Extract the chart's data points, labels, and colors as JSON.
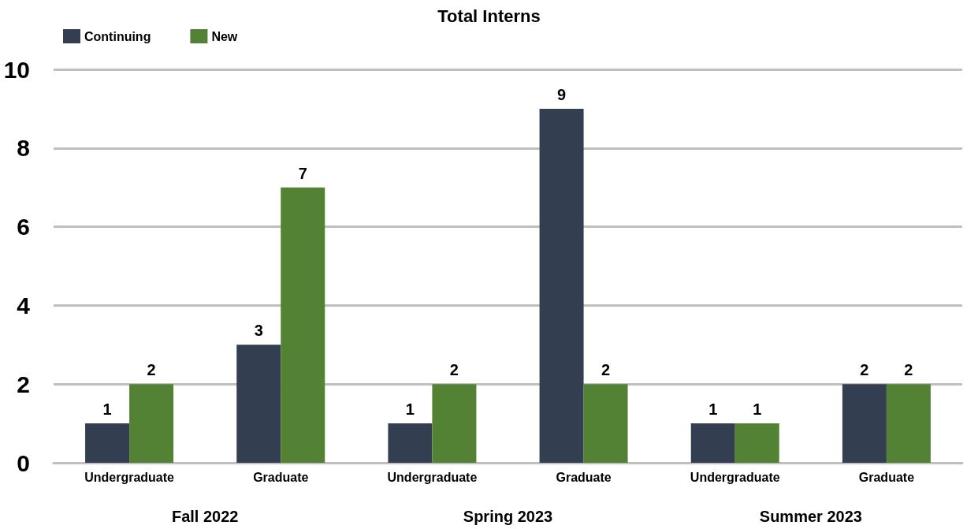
{
  "chart_data": {
    "type": "bar",
    "title": "Total Interns",
    "categories": [
      "Undergraduate",
      "Graduate",
      "Undergraduate",
      "Graduate",
      "Undergraduate",
      "Graduate"
    ],
    "series": [
      {
        "name": "Continuing",
        "color": "#333f50",
        "values": [
          1,
          3,
          1,
          9,
          1,
          2
        ]
      },
      {
        "name": "New",
        "color": "#548235",
        "values": [
          2,
          7,
          2,
          2,
          1,
          2
        ]
      }
    ],
    "annotations": [
      "Fall 2022",
      "Spring 2023",
      "Summer 2023"
    ],
    "ylim": [
      0,
      10
    ],
    "yticks": [
      0,
      2,
      4,
      6,
      8,
      10
    ],
    "grid": "y",
    "legend": "top left",
    "data_labels": true
  }
}
